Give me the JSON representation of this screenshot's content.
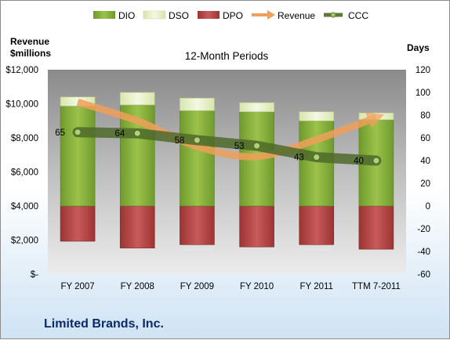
{
  "chart_data": {
    "type": "bar",
    "title": "12-Month Periods",
    "company": "Limited Brands, Inc.",
    "categories": [
      "FY 2007",
      "FY 2008",
      "FY 2009",
      "FY 2010",
      "FY 2011",
      "TTM 7-2011"
    ],
    "left_axis": {
      "title_line1": "Revenue",
      "title_line2": "$millions",
      "range": [
        0,
        12000
      ],
      "ticks": [
        "$12,000",
        "$10,000",
        "$8,000",
        "$6,000",
        "$4,000",
        "$2,000",
        "$-"
      ]
    },
    "right_axis": {
      "title": "Days",
      "range": [
        -60,
        120
      ],
      "ticks": [
        "120",
        "100",
        "80",
        "60",
        "40",
        "20",
        "0",
        "-20",
        "-40",
        "-60"
      ]
    },
    "legend": [
      {
        "name": "DIO",
        "color": "#8db33e"
      },
      {
        "name": "DSO",
        "color": "#e6efc4"
      },
      {
        "name": "DPO",
        "color": "#b94a4a"
      },
      {
        "name": "Revenue",
        "color": "#f0a05a"
      },
      {
        "name": "CCC",
        "color": "#5e7a34"
      }
    ],
    "series": [
      {
        "name": "DIO",
        "axis": "days",
        "values": [
          88,
          89,
          84,
          83,
          75,
          76
        ]
      },
      {
        "name": "DSO",
        "axis": "days",
        "values": [
          8,
          11,
          11,
          8,
          8,
          6
        ]
      },
      {
        "name": "DPO",
        "axis": "days",
        "values": [
          -31,
          -37,
          -34,
          -36,
          -34,
          -38
        ]
      },
      {
        "name": "Revenue",
        "axis": "revenue",
        "values": [
          10100,
          9000,
          7500,
          6900,
          7900,
          9200
        ]
      },
      {
        "name": "CCC",
        "axis": "days",
        "values": [
          65,
          64,
          58,
          53,
          43,
          40
        ],
        "labels": [
          "65",
          "64",
          "58",
          "53",
          "43",
          "40"
        ]
      }
    ],
    "legend_position": "top",
    "grid": false
  }
}
